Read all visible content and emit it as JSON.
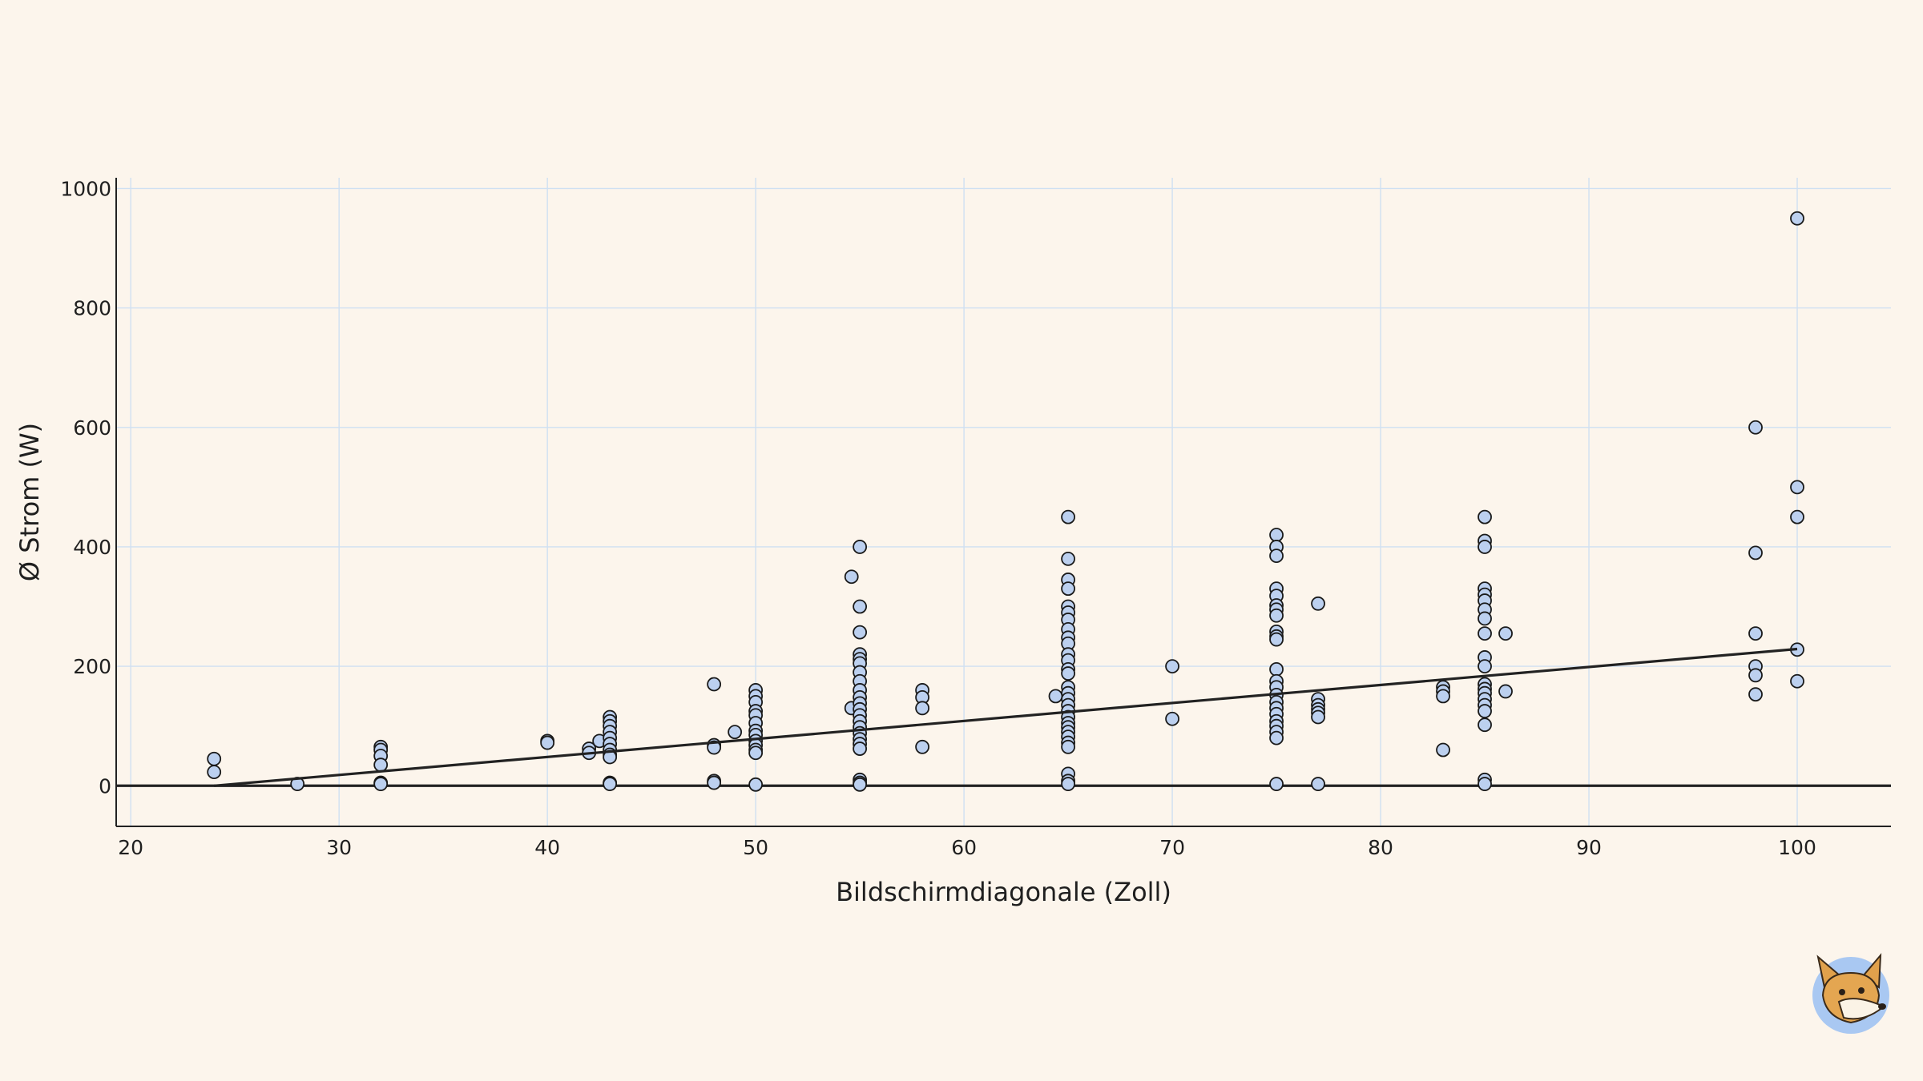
{
  "chart_data": {
    "type": "scatter",
    "title": "",
    "xlabel": "Bildschirmdiagonale (Zoll)",
    "ylabel": "Ø Strom (W)",
    "xlim": [
      19.3,
      104.5
    ],
    "ylim": [
      -68,
      1018
    ],
    "xticks": [
      20,
      30,
      40,
      50,
      60,
      70,
      80,
      90,
      100
    ],
    "yticks": [
      0,
      200,
      400,
      600,
      800,
      1000
    ],
    "grid": true,
    "trend_line": {
      "x": [
        24,
        100
      ],
      "y": [
        0,
        229
      ]
    },
    "reference_line_y": 0,
    "points": [
      [
        24,
        45
      ],
      [
        24,
        23
      ],
      [
        28,
        3
      ],
      [
        32,
        65
      ],
      [
        32,
        60
      ],
      [
        32,
        50
      ],
      [
        32,
        35
      ],
      [
        32,
        5
      ],
      [
        32,
        3
      ],
      [
        40,
        75
      ],
      [
        40,
        72
      ],
      [
        42,
        62
      ],
      [
        42,
        55
      ],
      [
        42.5,
        75
      ],
      [
        43,
        115
      ],
      [
        43,
        108
      ],
      [
        43,
        100
      ],
      [
        43,
        90
      ],
      [
        43,
        80
      ],
      [
        43,
        70
      ],
      [
        43,
        60
      ],
      [
        43,
        52
      ],
      [
        43,
        48
      ],
      [
        43,
        5
      ],
      [
        43,
        3
      ],
      [
        48,
        170
      ],
      [
        48,
        68
      ],
      [
        48,
        64
      ],
      [
        48,
        8
      ],
      [
        48,
        5
      ],
      [
        49,
        90
      ],
      [
        50,
        160
      ],
      [
        50,
        150
      ],
      [
        50,
        140
      ],
      [
        50,
        125
      ],
      [
        50,
        118
      ],
      [
        50,
        105
      ],
      [
        50,
        92
      ],
      [
        50,
        85
      ],
      [
        50,
        75
      ],
      [
        50,
        68
      ],
      [
        50,
        60
      ],
      [
        50,
        55
      ],
      [
        50,
        2
      ],
      [
        54.6,
        350
      ],
      [
        54.6,
        130
      ],
      [
        55,
        400
      ],
      [
        55,
        300
      ],
      [
        55,
        257
      ],
      [
        55,
        220
      ],
      [
        55,
        212
      ],
      [
        55,
        205
      ],
      [
        55,
        190
      ],
      [
        55,
        175
      ],
      [
        55,
        160
      ],
      [
        55,
        148
      ],
      [
        55,
        138
      ],
      [
        55,
        128
      ],
      [
        55,
        118
      ],
      [
        55,
        108
      ],
      [
        55,
        98
      ],
      [
        55,
        88
      ],
      [
        55,
        78
      ],
      [
        55,
        70
      ],
      [
        55,
        62
      ],
      [
        55,
        10
      ],
      [
        55,
        5
      ],
      [
        55,
        2
      ],
      [
        58,
        160
      ],
      [
        58,
        148
      ],
      [
        58,
        130
      ],
      [
        58,
        65
      ],
      [
        64.4,
        150
      ],
      [
        65,
        450
      ],
      [
        65,
        380
      ],
      [
        65,
        345
      ],
      [
        65,
        330
      ],
      [
        65,
        300
      ],
      [
        65,
        290
      ],
      [
        65,
        278
      ],
      [
        65,
        262
      ],
      [
        65,
        248
      ],
      [
        65,
        238
      ],
      [
        65,
        220
      ],
      [
        65,
        210
      ],
      [
        65,
        195
      ],
      [
        65,
        188
      ],
      [
        65,
        165
      ],
      [
        65,
        155
      ],
      [
        65,
        145
      ],
      [
        65,
        135
      ],
      [
        65,
        125
      ],
      [
        65,
        115
      ],
      [
        65,
        105
      ],
      [
        65,
        98
      ],
      [
        65,
        90
      ],
      [
        65,
        82
      ],
      [
        65,
        72
      ],
      [
        65,
        65
      ],
      [
        65,
        20
      ],
      [
        65,
        8
      ],
      [
        65,
        3
      ],
      [
        70,
        200
      ],
      [
        70,
        112
      ],
      [
        75,
        420
      ],
      [
        75,
        400
      ],
      [
        75,
        385
      ],
      [
        75,
        330
      ],
      [
        75,
        318
      ],
      [
        75,
        302
      ],
      [
        75,
        295
      ],
      [
        75,
        285
      ],
      [
        75,
        258
      ],
      [
        75,
        250
      ],
      [
        75,
        245
      ],
      [
        75,
        195
      ],
      [
        75,
        175
      ],
      [
        75,
        165
      ],
      [
        75,
        152
      ],
      [
        75,
        140
      ],
      [
        75,
        130
      ],
      [
        75,
        120
      ],
      [
        75,
        108
      ],
      [
        75,
        100
      ],
      [
        75,
        90
      ],
      [
        75,
        80
      ],
      [
        75,
        3
      ],
      [
        77,
        305
      ],
      [
        77,
        145
      ],
      [
        77,
        135
      ],
      [
        77,
        128
      ],
      [
        77,
        122
      ],
      [
        77,
        115
      ],
      [
        77,
        3
      ],
      [
        83,
        165
      ],
      [
        83,
        158
      ],
      [
        83,
        150
      ],
      [
        83,
        60
      ],
      [
        85,
        450
      ],
      [
        85,
        410
      ],
      [
        85,
        400
      ],
      [
        85,
        330
      ],
      [
        85,
        320
      ],
      [
        85,
        310
      ],
      [
        85,
        295
      ],
      [
        85,
        280
      ],
      [
        85,
        255
      ],
      [
        85,
        215
      ],
      [
        85,
        200
      ],
      [
        85,
        170
      ],
      [
        85,
        162
      ],
      [
        85,
        155
      ],
      [
        85,
        145
      ],
      [
        85,
        135
      ],
      [
        85,
        125
      ],
      [
        85,
        102
      ],
      [
        85,
        10
      ],
      [
        85,
        3
      ],
      [
        86,
        255
      ],
      [
        86,
        158
      ],
      [
        98,
        600
      ],
      [
        98,
        390
      ],
      [
        98,
        255
      ],
      [
        98,
        200
      ],
      [
        98,
        185
      ],
      [
        98,
        153
      ],
      [
        100,
        950
      ],
      [
        100,
        500
      ],
      [
        100,
        450
      ],
      [
        100,
        228
      ],
      [
        100,
        175
      ]
    ]
  },
  "branding": {
    "mascot_icon": "fox-mascot-icon"
  }
}
